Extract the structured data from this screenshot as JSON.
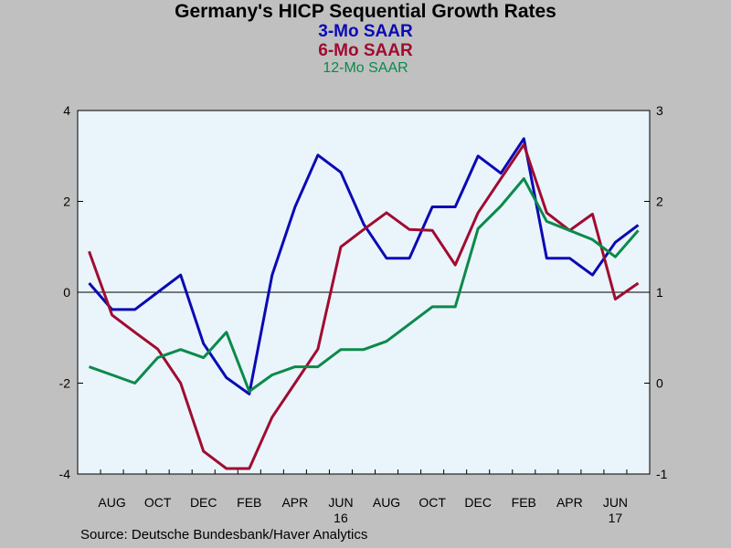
{
  "chart_data": {
    "type": "line",
    "title": "Germany's HICP Sequential Growth Rates",
    "legend": [
      {
        "label": "3-Mo SAAR",
        "color": "#0a0ab4"
      },
      {
        "label": "6-Mo SAAR",
        "color": "#a00c30"
      },
      {
        "label": "12-Mo SAAR",
        "color": "#0a8a4a"
      }
    ],
    "source": "Source:  Deutsche Bundesbank/Haver Analytics",
    "left_axis": {
      "ylim": [
        -4,
        4
      ],
      "ticks": [
        "4",
        "2",
        "0",
        "-2",
        "-4"
      ]
    },
    "right_axis": {
      "ylim": [
        -1,
        3
      ],
      "ticks": [
        "3",
        "2",
        "1",
        "0",
        "-1"
      ]
    },
    "x_tick_labels": [
      "AUG",
      "OCT",
      "DEC",
      "FEB",
      "APR",
      "JUN",
      "AUG",
      "OCT",
      "DEC",
      "FEB",
      "APR",
      "JUN"
    ],
    "year_labels": [
      {
        "label": "16",
        "at_month": "JUN"
      },
      {
        "label": "17",
        "at_month": "JUN"
      }
    ],
    "x": [
      "Jul-15",
      "Aug-15",
      "Sep-15",
      "Oct-15",
      "Nov-15",
      "Dec-15",
      "Jan-16",
      "Feb-16",
      "Mar-16",
      "Apr-16",
      "May-16",
      "Jun-16",
      "Jul-16",
      "Aug-16",
      "Sep-16",
      "Oct-16",
      "Nov-16",
      "Dec-16",
      "Jan-17",
      "Feb-17",
      "Mar-17",
      "Apr-17",
      "May-17",
      "Jun-17",
      "Jul-17"
    ],
    "grid": false,
    "series": [
      {
        "name": "3-Mo SAAR",
        "axis": "left",
        "color": "#0a0ab4",
        "values": [
          0.2,
          -0.38,
          -0.38,
          0.0,
          0.38,
          -1.13,
          -1.88,
          -2.24,
          0.38,
          1.88,
          3.02,
          2.64,
          1.5,
          0.75,
          0.75,
          1.88,
          1.88,
          3.0,
          2.62,
          3.38,
          0.75,
          0.75,
          0.38,
          1.1,
          1.48
        ]
      },
      {
        "name": "6-Mo SAAR",
        "axis": "left",
        "color": "#a00c30",
        "values": [
          0.9,
          -0.5,
          -0.88,
          -1.25,
          -2.0,
          -3.5,
          -3.88,
          -3.88,
          -2.75,
          -2.0,
          -1.25,
          1.0,
          1.38,
          1.75,
          1.38,
          1.36,
          0.6,
          1.75,
          2.5,
          3.25,
          1.75,
          1.36,
          1.72,
          -0.15,
          0.2
        ]
      },
      {
        "name": "12-Mo SAAR",
        "axis": "right",
        "color": "#0a8a4a",
        "values": [
          0.18,
          0.09,
          0.0,
          0.28,
          0.37,
          0.28,
          0.56,
          -0.09,
          0.09,
          0.18,
          0.18,
          0.37,
          0.37,
          0.46,
          0.65,
          0.84,
          0.84,
          1.7,
          1.95,
          2.25,
          1.78,
          1.68,
          1.58,
          1.39,
          1.68
        ]
      }
    ]
  }
}
